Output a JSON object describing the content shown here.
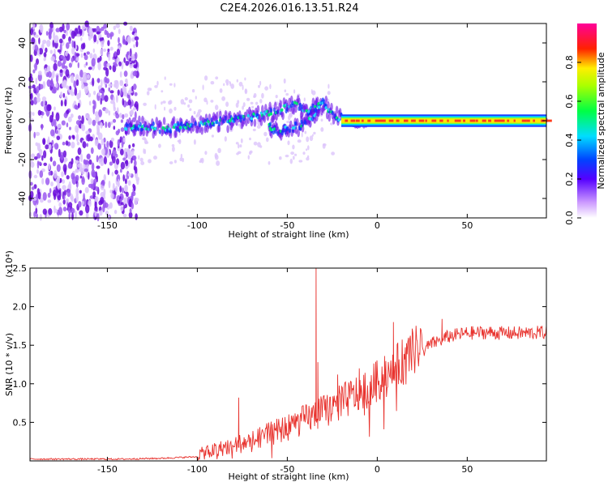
{
  "title": "C2E4.2026.016.13.51.R24",
  "chart_data": [
    {
      "type": "heatmap",
      "xlabel": "Height of straight line (km)",
      "ylabel": "Frequency (Hz)",
      "xlim": [
        -193,
        94
      ],
      "ylim": [
        -50,
        50
      ],
      "xticks": [
        -150,
        -100,
        -50,
        0,
        50
      ],
      "yticks": [
        -40,
        -20,
        0,
        20,
        40
      ],
      "colorbar": {
        "label": "Normalized spectral amplitude",
        "range": [
          0.0,
          1.0
        ],
        "ticks": [
          0.0,
          0.2,
          0.4,
          0.6,
          0.8
        ]
      },
      "features": {
        "noise_region_x": [
          -193,
          -133
        ],
        "main_track": {
          "x": [
            -140,
            -130,
            -120,
            -110,
            -100,
            -90,
            -80,
            -70,
            -60,
            -50,
            -45,
            -40,
            -35,
            -30,
            -25,
            -20,
            -15,
            -10,
            0,
            10,
            20,
            40,
            60,
            80,
            94
          ],
          "freq": [
            -4,
            -3,
            -4,
            -3,
            -2,
            -1,
            0,
            2,
            4,
            7,
            9,
            5,
            6,
            9,
            3,
            1,
            -1,
            -2,
            0,
            1,
            0,
            0,
            0,
            0,
            0
          ]
        },
        "branch_track": {
          "x": [
            -60,
            -55,
            -50,
            -45,
            -40,
            -35,
            -32
          ],
          "freq": [
            -3,
            -5,
            -4,
            -3,
            -1,
            3,
            8
          ]
        }
      }
    },
    {
      "type": "line",
      "xlabel": "Height of straight line (km)",
      "ylabel": "SNR (10 * v/v)",
      "scale_label": "(x10⁴)",
      "xlim": [
        -193,
        94
      ],
      "ylim": [
        0,
        2.5
      ],
      "xticks": [
        -150,
        -100,
        -50,
        0,
        50
      ],
      "yticks": [
        0.5,
        1.0,
        1.5,
        2.0,
        2.5
      ],
      "series": [
        {
          "name": "SNR",
          "color": "#e8322d",
          "trend": {
            "x": [
              -193,
              -140,
              -120,
              -100,
              -90,
              -80,
              -70,
              -60,
              -50,
              -40,
              -30,
              -20,
              -10,
              0,
              10,
              20,
              30,
              40,
              50,
              60,
              70,
              80,
              94
            ],
            "y": [
              0.02,
              0.02,
              0.03,
              0.05,
              0.1,
              0.16,
              0.2,
              0.28,
              0.36,
              0.46,
              0.55,
              0.66,
              0.78,
              0.92,
              1.08,
              1.28,
              1.48,
              1.58,
              1.62,
              1.63,
              1.62,
              1.62,
              1.63
            ]
          },
          "spikes": [
            {
              "x": -77,
              "y": 0.82
            },
            {
              "x": -34,
              "y": 2.5
            },
            {
              "x": -33,
              "y": 1.28
            },
            {
              "x": -22,
              "y": 1.12
            },
            {
              "x": -10,
              "y": 1.2
            },
            {
              "x": 9,
              "y": 1.8
            },
            {
              "x": 36,
              "y": 1.84
            }
          ]
        }
      ]
    }
  ]
}
